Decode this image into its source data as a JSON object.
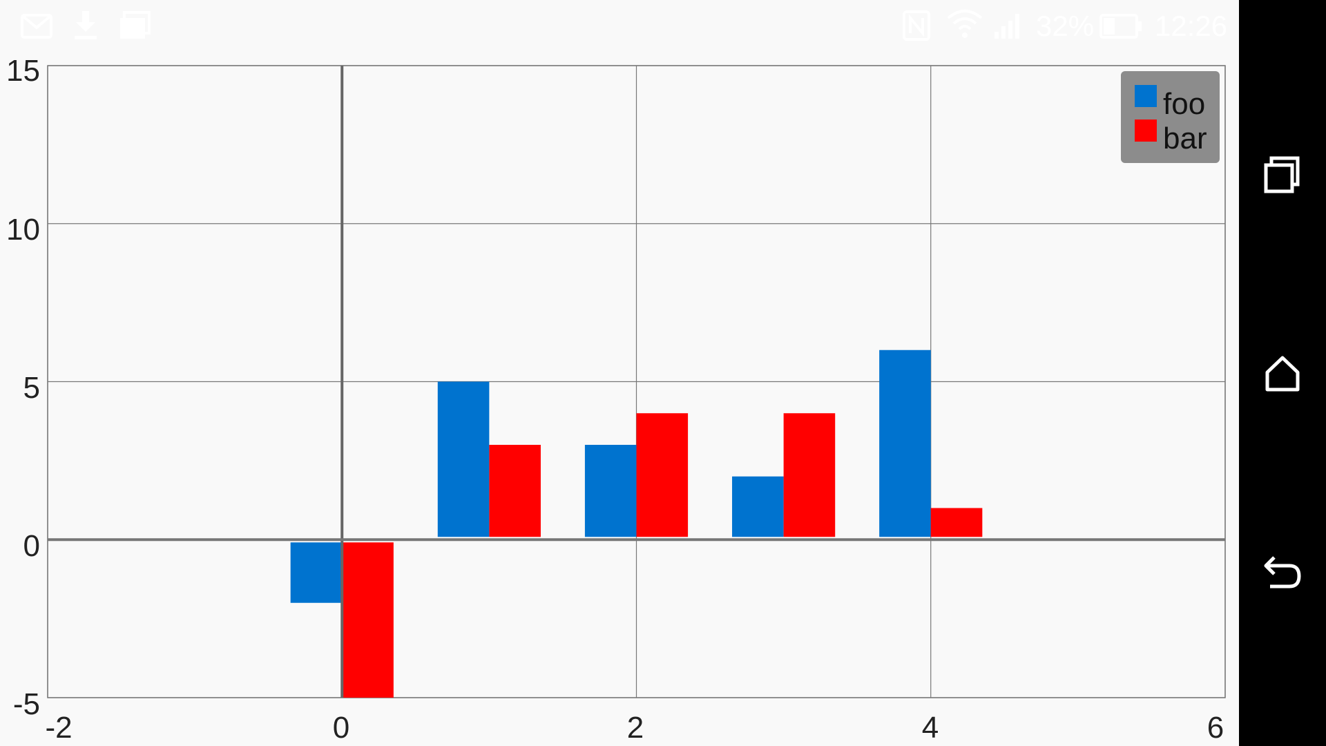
{
  "status_bar": {
    "battery": "32%",
    "time": "12:26",
    "left_icons": [
      "gmail-icon",
      "download-icon",
      "photo-icon"
    ],
    "right_icons": [
      "nfc-icon",
      "wifi-icon",
      "signal-icon",
      "battery-icon"
    ]
  },
  "nav_bar": {
    "buttons": [
      "recent-apps-button",
      "home-button",
      "back-button"
    ]
  },
  "chart_data": {
    "type": "bar",
    "x": [
      0,
      1,
      2,
      3,
      4
    ],
    "series": [
      {
        "name": "foo",
        "color": "#0073CF",
        "values": [
          -2,
          5,
          3,
          2,
          6
        ]
      },
      {
        "name": "bar",
        "color": "#FF0000",
        "values": [
          -5,
          3,
          4,
          4,
          1
        ]
      }
    ],
    "xlim": [
      -2,
      6
    ],
    "ylim": [
      -5,
      15
    ],
    "xticks": [
      "-2",
      "0",
      "2",
      "4",
      "6"
    ],
    "yticks": [
      "15",
      "10",
      "5",
      "0",
      "-5"
    ],
    "grid": true,
    "legend_position": "top-right",
    "legend_background": "#8c8c8c"
  }
}
